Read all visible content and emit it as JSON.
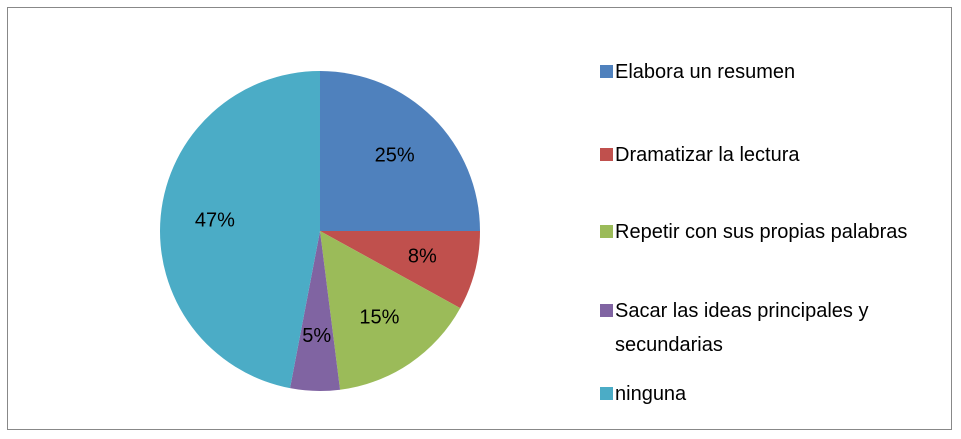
{
  "chart_data": {
    "type": "pie",
    "categories": [
      "Elabora un resumen",
      "Dramatizar la lectura",
      "Repetir con sus propias palabras",
      "Sacar las ideas principales y secundarias",
      "ninguna"
    ],
    "values": [
      25,
      8,
      15,
      5,
      47
    ],
    "value_labels": [
      "25%",
      "8%",
      "15%",
      "5%",
      "47%"
    ],
    "colors": [
      "#4f81bd",
      "#c0504d",
      "#9bbb59",
      "#8064a2",
      "#4bacc6"
    ]
  }
}
